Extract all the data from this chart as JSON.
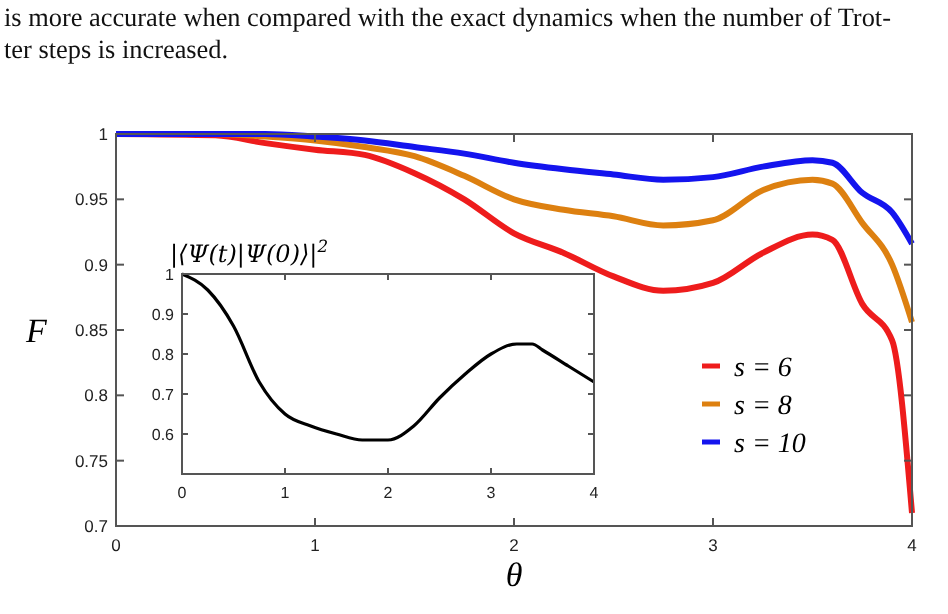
{
  "chart_data": [
    {
      "type": "line",
      "xlabel": "θ",
      "ylabel": "F",
      "xlim": [
        0,
        4
      ],
      "ylim": [
        0.7,
        1
      ],
      "xticks": [
        0,
        1,
        2,
        3,
        4
      ],
      "yticks": [
        0.7,
        0.75,
        0.8,
        0.85,
        0.9,
        0.95,
        1
      ],
      "grid": false,
      "legend": "bottom right",
      "marker": "none",
      "line_style": "solid",
      "annotations": [
        "is more accurate when compared with the exact dynamics when the number of Trot-",
        "ter steps is increased."
      ],
      "x": [
        0,
        0.5,
        0.75,
        1,
        1.25,
        1.5,
        1.75,
        2,
        2.25,
        2.5,
        2.75,
        3,
        3.25,
        3.5,
        3.6,
        3.75,
        3.9,
        4
      ],
      "series": [
        {
          "name": "s = 6",
          "color": "#ee1c1c",
          "values": [
            1,
            0.999,
            0.993,
            0.988,
            0.984,
            0.97,
            0.95,
            0.924,
            0.909,
            0.891,
            0.88,
            0.886,
            0.909,
            0.923,
            0.919,
            0.87,
            0.842,
            0.71
          ]
        },
        {
          "name": "s = 8",
          "color": "#dd8010",
          "values": [
            1,
            1,
            0.998,
            0.995,
            0.99,
            0.983,
            0.968,
            0.95,
            0.942,
            0.937,
            0.93,
            0.934,
            0.957,
            0.965,
            0.962,
            0.932,
            0.9,
            0.856
          ]
        },
        {
          "name": "s = 10",
          "color": "#1414ee",
          "values": [
            1,
            1,
            1,
            0.998,
            0.995,
            0.99,
            0.985,
            0.978,
            0.973,
            0.969,
            0.965,
            0.967,
            0.975,
            0.98,
            0.978,
            0.955,
            0.94,
            0.916
          ]
        }
      ]
    },
    {
      "type": "line",
      "title": "|⟨Ψ(t)|Ψ(0)⟩|$^{2}$",
      "xlim": [
        0,
        4
      ],
      "ylim": [
        0.5,
        1
      ],
      "xticks": [
        0,
        1,
        2,
        3,
        4
      ],
      "yticks": [
        0.6,
        0.7,
        0.8,
        0.9,
        1
      ],
      "grid": false,
      "legend": false,
      "marker": "none",
      "line_style": "solid",
      "x": [
        0,
        0.25,
        0.5,
        0.75,
        1,
        1.25,
        1.5,
        1.75,
        2,
        2.25,
        2.5,
        2.75,
        3,
        3.25,
        3.4,
        3.5,
        3.75,
        4
      ],
      "series": [
        {
          "color": "#000000",
          "values": [
            1,
            0.96,
            0.87,
            0.73,
            0.65,
            0.62,
            0.6,
            0.585,
            0.585,
            0.62,
            0.69,
            0.75,
            0.8,
            0.825,
            0.825,
            0.81,
            0.77,
            0.73
          ]
        }
      ]
    }
  ]
}
